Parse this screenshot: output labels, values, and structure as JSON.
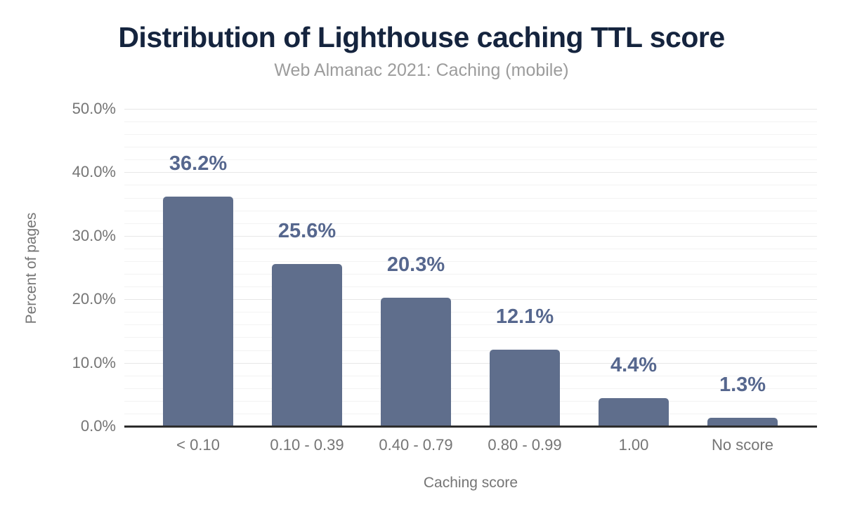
{
  "figure": {
    "title": "Distribution of Lighthouse caching TTL score",
    "subtitle": "Web Almanac 2021: Caching (mobile)"
  },
  "chart_data": {
    "type": "bar",
    "title": "Distribution of Lighthouse caching TTL score",
    "subtitle": "Web Almanac 2021: Caching (mobile)",
    "categories": [
      "< 0.10",
      "0.10 - 0.39",
      "0.40 - 0.79",
      "0.80 - 0.99",
      "1.00",
      "No score"
    ],
    "values": [
      36.2,
      25.6,
      20.3,
      12.1,
      4.4,
      1.3
    ],
    "data_labels": [
      "36.2%",
      "25.6%",
      "20.3%",
      "12.1%",
      "4.4%",
      "1.3%"
    ],
    "xlabel": "Caching score",
    "ylabel": "Percent of pages",
    "ylim": [
      0,
      50
    ],
    "yticks": [
      0,
      10,
      20,
      30,
      40,
      50
    ],
    "ytick_labels": [
      "0.0%",
      "10.0%",
      "20.0%",
      "30.0%",
      "40.0%",
      "50.0%"
    ],
    "grid": {
      "minor_step": 2,
      "major_step": 10,
      "grid_on": true
    },
    "legend": "none",
    "colors": {
      "bar": "#5f6e8c",
      "data_label": "#56678e",
      "title": "#15243e",
      "subtitle": "#9c9c9c",
      "axis_text": "#757575",
      "axis_line": "#2d2d2d",
      "grid_major": "#e7e7e7",
      "grid_minor": "#f3f3f3"
    }
  }
}
